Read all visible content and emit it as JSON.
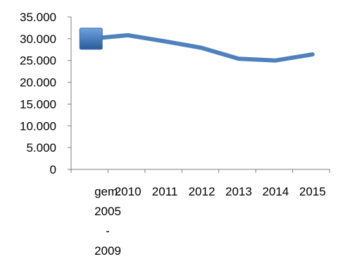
{
  "chart_data": {
    "type": "line",
    "categories": [
      "gem. 2005 - 2009",
      "2010",
      "2011",
      "2012",
      "2013",
      "2014",
      "2015"
    ],
    "category_label_lines": [
      [
        "gem.",
        "2005",
        "-",
        "2009"
      ],
      [
        "2010"
      ],
      [
        "2011"
      ],
      [
        "2012"
      ],
      [
        "2013"
      ],
      [
        "2014"
      ],
      [
        "2015"
      ]
    ],
    "series": [
      {
        "values": [
          30000,
          30800,
          29400,
          27900,
          25400,
          25000,
          26400
        ],
        "color": "#4f81bd",
        "marker": "square-first-point"
      }
    ],
    "y_ticks": [
      "0",
      "5.000",
      "10.000",
      "15.000",
      "20.000",
      "25.000",
      "30.000",
      "35.000"
    ],
    "ylim": [
      0,
      35000
    ],
    "grid": false,
    "legend": "none",
    "title": "",
    "xlabel": "",
    "ylabel": ""
  }
}
